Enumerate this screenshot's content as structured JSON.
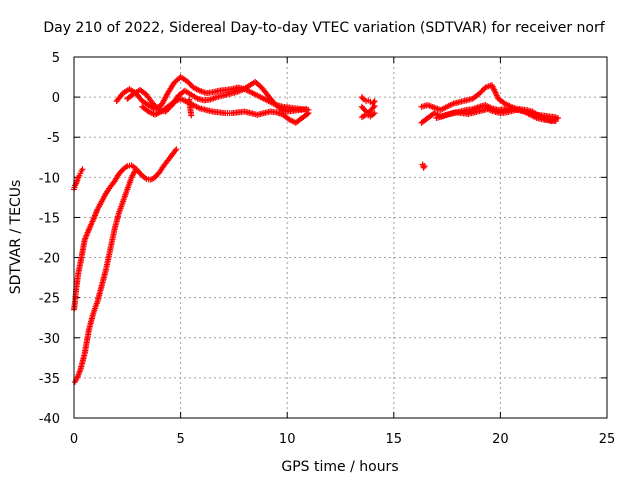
{
  "chart_data": {
    "type": "scatter",
    "title": "Day 210 of 2022, Sidereal Day-to-day VTEC variation (SDTVAR) for receiver norf",
    "xlabel": "GPS time / hours",
    "ylabel": "SDTVAR / TECUs",
    "xlim": [
      0,
      25
    ],
    "ylim": [
      -40,
      5
    ],
    "xticks": [
      "0",
      "5",
      "10",
      "15",
      "20",
      "25"
    ],
    "yticks": [
      "5",
      "0",
      "-5",
      "-10",
      "-15",
      "-20",
      "-25",
      "-30",
      "-35",
      "-40"
    ],
    "grid": true,
    "marker": "plus",
    "color": "#ff0000",
    "series": [
      {
        "name": "upper arc",
        "x": [
          0.0,
          0.05,
          0.1,
          0.2,
          0.35,
          0.5,
          0.7,
          0.9,
          1.1,
          1.3,
          1.5,
          1.7,
          1.9,
          2.1,
          2.3,
          2.5,
          2.7,
          2.85,
          3.0,
          3.2,
          3.4,
          3.6,
          3.8,
          4.0,
          4.2,
          4.4,
          4.6,
          4.8
        ],
        "y": [
          -26.5,
          -25.5,
          -24.0,
          -22.0,
          -20.0,
          -17.8,
          -16.5,
          -15.3,
          -14.0,
          -13.0,
          -12.0,
          -11.2,
          -10.5,
          -9.6,
          -9.0,
          -8.6,
          -8.5,
          -8.8,
          -9.2,
          -9.8,
          -10.2,
          -10.3,
          -10.0,
          -9.4,
          -8.6,
          -7.9,
          -7.2,
          -6.5
        ]
      },
      {
        "name": "lower arc",
        "x": [
          0.05,
          0.15,
          0.3,
          0.5,
          0.7,
          0.9,
          1.1,
          1.3,
          1.5,
          1.7,
          1.9,
          2.1,
          2.3,
          2.5,
          2.7,
          2.9
        ],
        "y": [
          -35.5,
          -35.0,
          -34.0,
          -32.0,
          -29.0,
          -27.0,
          -25.5,
          -23.5,
          -21.5,
          -19.0,
          -16.5,
          -14.5,
          -13.0,
          -11.5,
          -10.0,
          -9.0
        ]
      },
      {
        "name": "start cluster",
        "x": [
          0.0,
          0.05,
          0.1,
          0.15,
          0.2,
          0.25,
          0.3,
          0.35,
          0.4
        ],
        "y": [
          -11.5,
          -11.0,
          -10.8,
          -10.4,
          -10.0,
          -9.8,
          -9.5,
          -9.2,
          -9.0
        ]
      },
      {
        "name": "band A (upper)",
        "x": [
          2.0,
          2.3,
          2.6,
          2.9,
          3.2,
          3.5,
          3.8,
          4.1,
          4.4,
          4.7,
          5.0,
          5.3,
          5.6,
          5.9,
          6.2,
          6.5,
          6.8,
          7.1,
          7.4,
          7.7,
          8.0,
          8.3,
          8.6,
          8.9,
          9.2,
          9.5,
          9.8,
          10.1,
          10.4,
          10.7,
          11.0
        ],
        "y": [
          -0.5,
          0.5,
          1.0,
          0.5,
          -0.5,
          -1.0,
          -1.5,
          -1.0,
          0.5,
          1.8,
          2.5,
          2.0,
          1.2,
          0.8,
          0.5,
          0.6,
          0.8,
          0.9,
          1.0,
          1.2,
          1.0,
          0.6,
          0.2,
          -0.2,
          -0.6,
          -1.0,
          -1.2,
          -1.3,
          -1.4,
          -1.5,
          -1.6
        ]
      },
      {
        "name": "band B (middle)",
        "x": [
          2.5,
          2.8,
          3.1,
          3.4,
          3.7,
          4.0,
          4.3,
          4.6,
          4.9,
          5.2,
          5.5,
          5.8,
          6.1,
          6.4,
          6.7,
          7.0,
          7.3,
          7.6,
          7.9,
          8.2,
          8.5,
          8.8,
          9.1,
          9.4,
          9.7,
          10.0,
          10.3,
          10.6,
          10.9
        ],
        "y": [
          -0.2,
          0.4,
          0.9,
          0.3,
          -0.8,
          -1.6,
          -1.8,
          -1.0,
          0.2,
          0.8,
          0.3,
          -0.2,
          -0.4,
          -0.3,
          0.0,
          0.2,
          0.4,
          0.6,
          0.9,
          1.4,
          1.9,
          1.2,
          0.2,
          -0.8,
          -1.5,
          -1.8,
          -1.7,
          -1.6,
          -1.5
        ]
      },
      {
        "name": "band C (lower)",
        "x": [
          3.2,
          3.5,
          3.8,
          4.1,
          4.4,
          4.7,
          5.0,
          5.3,
          5.6,
          5.9,
          6.2,
          6.5,
          6.8,
          7.1,
          7.4,
          7.7,
          8.0,
          8.3,
          8.6,
          8.9,
          9.2,
          9.5,
          9.8,
          10.1,
          10.4,
          10.7,
          11.0
        ],
        "y": [
          -1.2,
          -1.8,
          -2.2,
          -1.8,
          -1.2,
          -0.6,
          -0.2,
          -0.6,
          -1.0,
          -1.4,
          -1.6,
          -1.8,
          -1.9,
          -2.0,
          -2.0,
          -1.9,
          -1.8,
          -2.0,
          -2.2,
          -2.0,
          -1.8,
          -1.9,
          -2.2,
          -2.8,
          -3.2,
          -2.6,
          -2.0
        ]
      },
      {
        "name": "isolated points near 5.5 h",
        "x": [
          5.4,
          5.5
        ],
        "y": [
          -0.3,
          -2.3
        ]
      },
      {
        "name": "cluster near 13.8 h",
        "x": [
          13.5,
          13.6,
          13.7,
          13.8,
          13.9,
          14.0,
          14.1,
          13.5,
          13.6,
          13.7,
          13.8,
          13.9,
          14.0,
          14.1,
          13.5,
          13.7,
          13.9,
          14.1
        ],
        "y": [
          0.0,
          -0.3,
          -0.5,
          -0.4,
          -0.6,
          -0.8,
          -0.5,
          -1.2,
          -1.5,
          -1.8,
          -2.0,
          -1.7,
          -1.4,
          -1.1,
          -2.5,
          -2.2,
          -2.4,
          -2.0
        ]
      },
      {
        "name": "point near 16.4 h",
        "x": [
          16.35,
          16.4,
          16.45
        ],
        "y": [
          -8.4,
          -8.8,
          -8.6
        ]
      },
      {
        "name": "late band A",
        "x": [
          16.3,
          16.6,
          16.9,
          17.2,
          17.5,
          17.8,
          18.1,
          18.4,
          18.7,
          19.0,
          19.3,
          19.6,
          19.9,
          20.2,
          20.5,
          20.8,
          21.1,
          21.4,
          21.7,
          22.0,
          22.3,
          22.6
        ],
        "y": [
          -1.2,
          -1.0,
          -1.3,
          -1.6,
          -1.2,
          -0.8,
          -0.6,
          -0.4,
          -0.2,
          0.4,
          1.2,
          1.5,
          -0.2,
          -0.8,
          -1.2,
          -1.5,
          -1.8,
          -2.0,
          -2.2,
          -2.3,
          -2.4,
          -2.5
        ]
      },
      {
        "name": "late band B",
        "x": [
          16.3,
          16.6,
          16.9,
          17.2,
          17.5,
          17.8,
          18.1,
          18.4,
          18.7,
          19.0,
          19.3,
          19.6,
          19.9,
          20.2,
          20.5,
          20.8,
          21.1,
          21.4,
          21.7,
          22.0,
          22.3,
          22.6
        ],
        "y": [
          -3.2,
          -2.6,
          -2.0,
          -2.4,
          -2.2,
          -2.0,
          -1.8,
          -1.6,
          -1.5,
          -1.2,
          -1.0,
          -1.4,
          -1.6,
          -1.5,
          -1.4,
          -1.6,
          -1.8,
          -2.2,
          -2.6,
          -2.8,
          -2.9,
          -3.0
        ]
      },
      {
        "name": "late band C",
        "x": [
          17.0,
          17.3,
          17.6,
          17.9,
          18.2,
          18.5,
          18.8,
          19.1,
          19.4,
          19.7,
          20.0,
          20.3,
          20.6,
          20.9,
          21.2,
          21.5,
          21.8,
          22.1,
          22.4,
          22.7
        ],
        "y": [
          -2.6,
          -2.4,
          -2.1,
          -1.9,
          -2.0,
          -2.1,
          -1.9,
          -1.7,
          -1.5,
          -1.8,
          -2.0,
          -1.9,
          -1.7,
          -1.5,
          -1.6,
          -1.8,
          -2.3,
          -2.7,
          -3.0,
          -2.6
        ]
      }
    ]
  }
}
